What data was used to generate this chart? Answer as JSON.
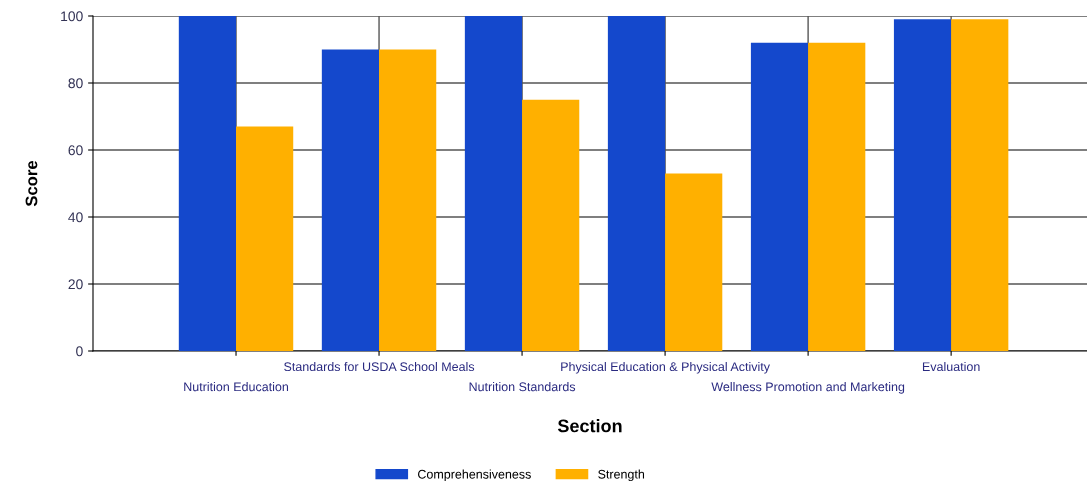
{
  "chart_data": {
    "type": "bar",
    "xlabel": "Section",
    "ylabel": "Score",
    "categories": [
      "Nutrition Education",
      "Standards for USDA School Meals",
      "Nutrition Standards",
      "Physical Education & Physical Activity",
      "Wellness Promotion and Marketing",
      "Evaluation"
    ],
    "series": [
      {
        "name": "Comprehensiveness",
        "color": "#1448cc",
        "values": [
          100,
          90,
          100,
          100,
          92,
          99
        ]
      },
      {
        "name": "Strength",
        "color": "#ffb000",
        "values": [
          67,
          90,
          75,
          53,
          92,
          99
        ]
      }
    ],
    "ylim": [
      0,
      100
    ],
    "yticks": [
      0,
      20,
      40,
      60,
      80,
      100
    ],
    "grid": true,
    "legend": "bottom"
  }
}
